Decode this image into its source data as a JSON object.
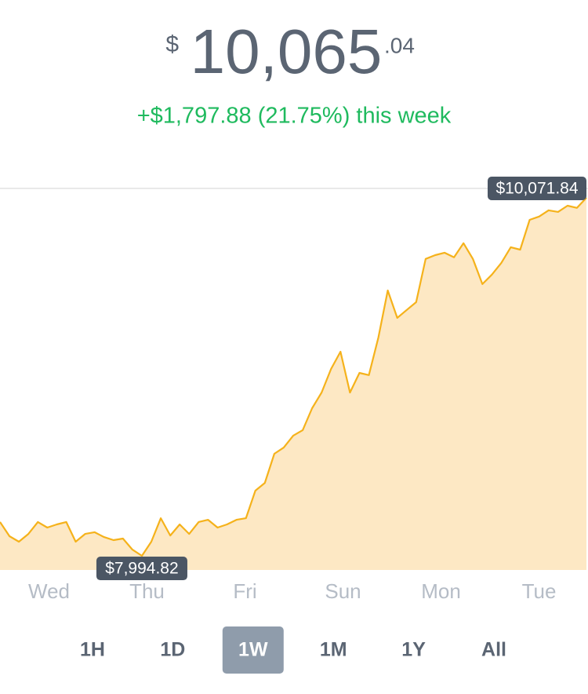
{
  "header": {
    "currency_symbol": "$",
    "price_main": "10,065",
    "price_cents": ".04",
    "change": "+$1,797.88 (21.75%) this week"
  },
  "chart_data": {
    "type": "area",
    "values": [
      8191,
      8109,
      8077,
      8122,
      8191,
      8159,
      8177,
      8191,
      8077,
      8122,
      8132,
      8104,
      8086,
      8095,
      8031,
      7994.82,
      8077,
      8213,
      8113,
      8177,
      8122,
      8191,
      8204,
      8159,
      8177,
      8204,
      8213,
      8373,
      8418,
      8587,
      8623,
      8692,
      8724,
      8851,
      8942,
      9079,
      9179,
      8942,
      9056,
      9043,
      9261,
      9534,
      9375,
      9421,
      9466,
      9717,
      9739,
      9753,
      9726,
      9808,
      9717,
      9571,
      9626,
      9694,
      9785,
      9771,
      9944,
      9963,
      9999,
      9990,
      10026,
      10013,
      10071.84
    ],
    "x_axis_labels": [
      "Wed",
      "Thu",
      "Fri",
      "Sun",
      "Mon",
      "Tue"
    ],
    "ylim": [
      7913,
      10126
    ],
    "color": "#f5b21b",
    "fill_color": "#fde8c4",
    "annotations": [
      {
        "value": 10071.84,
        "label": "$10,071.84"
      },
      {
        "value": 7994.82,
        "label": "$7,994.82"
      }
    ]
  },
  "range_buttons": {
    "options": [
      "1H",
      "1D",
      "1W",
      "1M",
      "1Y",
      "All"
    ],
    "selected_index": 2
  }
}
